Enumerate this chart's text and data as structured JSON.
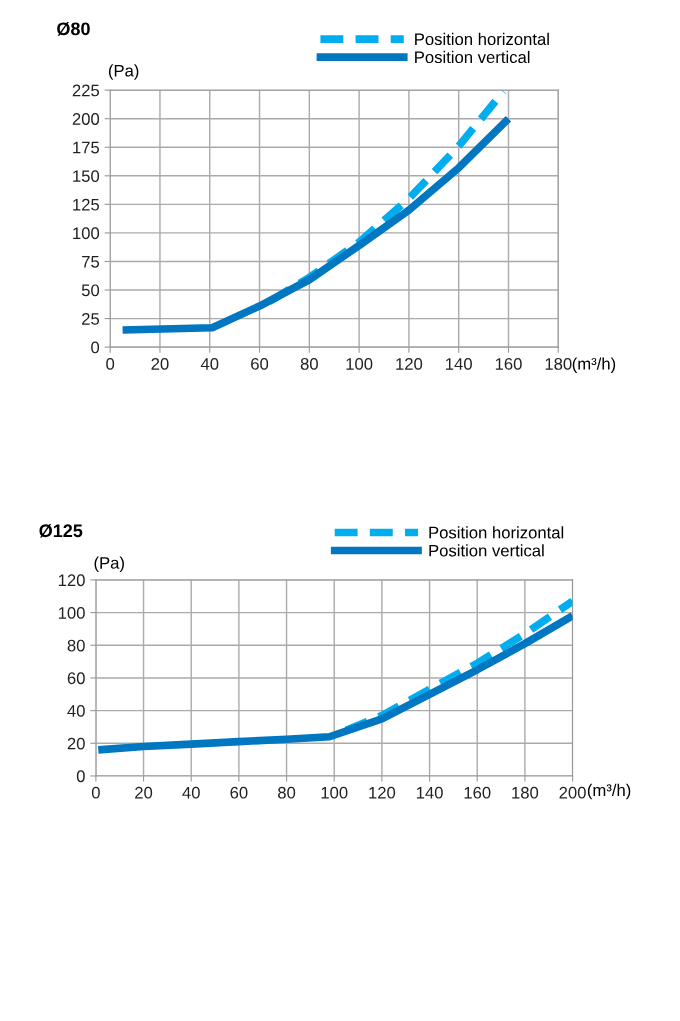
{
  "chart_data": [
    {
      "type": "line",
      "title": "Ø80",
      "ylabel": "(Pa)",
      "xlabel": "(m³/h)",
      "xlim": [
        0,
        180
      ],
      "xticks": [
        0,
        20,
        40,
        60,
        80,
        100,
        120,
        140,
        160,
        180
      ],
      "ylim": [
        0,
        225
      ],
      "yticks": [
        0,
        25,
        50,
        75,
        100,
        125,
        150,
        175,
        200,
        225
      ],
      "grid": true,
      "legend": "top right",
      "series": [
        {
          "name": "Position horizontal",
          "color": "#00aeef",
          "line_style": "dashed",
          "x": [
            64,
            80,
            100,
            120,
            140,
            158
          ],
          "values": [
            40,
            61,
            92,
            130,
            176,
            224
          ]
        },
        {
          "name": "Position vertical",
          "color": "#0077c0",
          "line_style": "solid",
          "x": [
            5,
            41,
            60,
            80,
            100,
            120,
            140,
            160
          ],
          "values": [
            15,
            17,
            36,
            59,
            89,
            120,
            157,
            200
          ]
        }
      ]
    },
    {
      "type": "line",
      "title": "Ø125",
      "ylabel": "(Pa)",
      "xlabel": "(m³/h)",
      "xlim": [
        0,
        200
      ],
      "xticks": [
        0,
        20,
        40,
        60,
        80,
        100,
        120,
        140,
        160,
        180,
        200
      ],
      "ylim": [
        0,
        120
      ],
      "yticks": [
        0,
        20,
        40,
        60,
        80,
        100,
        120
      ],
      "grid": true,
      "legend": "top right",
      "series": [
        {
          "name": "Position horizontal",
          "color": "#00aeef",
          "line_style": "dashed",
          "x": [
            105,
            120,
            140,
            160,
            180,
            200
          ],
          "values": [
            28,
            37,
            53,
            69,
            87,
            107
          ]
        },
        {
          "name": "Position vertical",
          "color": "#0077c0",
          "line_style": "solid",
          "x": [
            1,
            20,
            40,
            60,
            80,
            98,
            120,
            140,
            160,
            180,
            200
          ],
          "values": [
            16,
            18,
            19.5,
            21,
            22.5,
            24,
            35,
            50,
            65,
            81,
            98
          ]
        }
      ]
    }
  ]
}
